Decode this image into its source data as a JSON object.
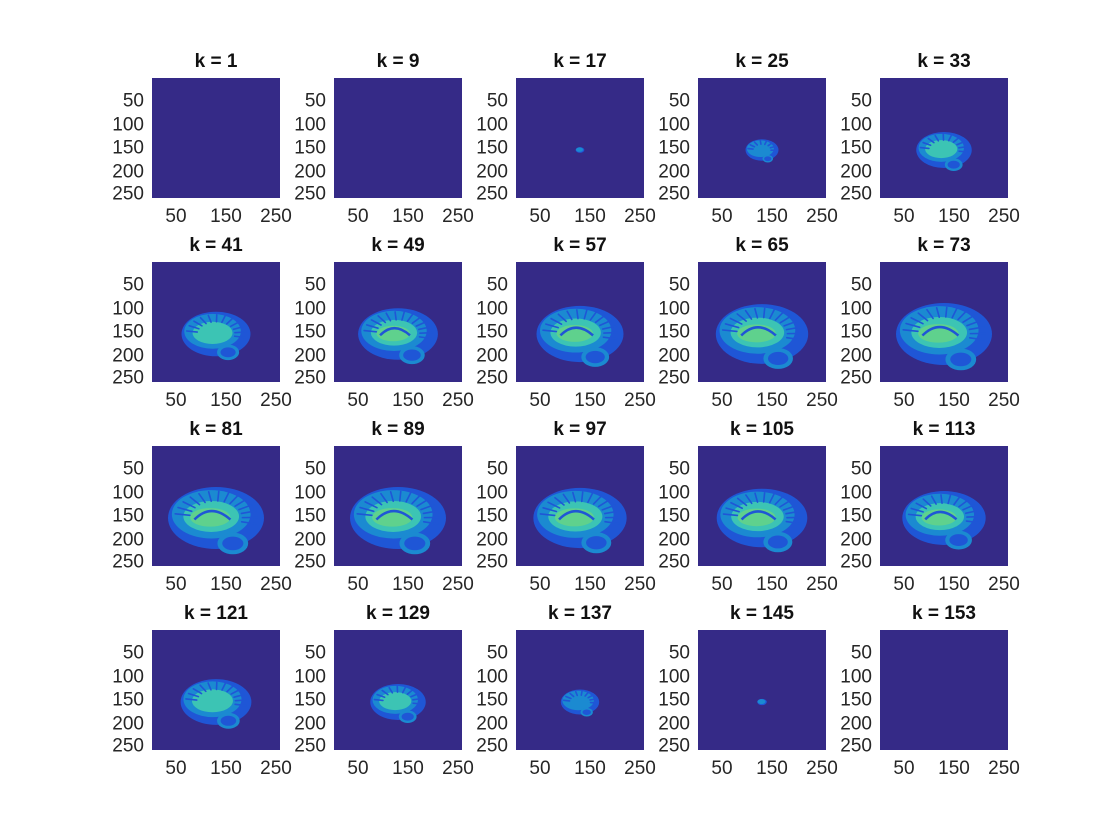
{
  "figure": {
    "colors": {
      "background": "#352a87",
      "tissue_dark": "#1f56d6",
      "tissue_mid": "#1b8ad1",
      "tissue_light": "#3cc4b4",
      "white_matter": "#5fd18d"
    },
    "y_ticks": [
      "50",
      "100",
      "150",
      "200",
      "250"
    ],
    "x_ticks": [
      "50",
      "150",
      "250"
    ],
    "panels": [
      {
        "title": "k = 1",
        "level": 0
      },
      {
        "title": "k = 9",
        "level": 0
      },
      {
        "title": "k = 17",
        "level": 0.03
      },
      {
        "title": "k = 25",
        "level": 0.3
      },
      {
        "title": "k = 33",
        "level": 0.55
      },
      {
        "title": "k = 41",
        "level": 0.7
      },
      {
        "title": "k = 49",
        "level": 0.82
      },
      {
        "title": "k = 57",
        "level": 0.9
      },
      {
        "title": "k = 65",
        "level": 0.96
      },
      {
        "title": "k = 73",
        "level": 1.0
      },
      {
        "title": "k = 81",
        "level": 1.0
      },
      {
        "title": "k = 89",
        "level": 1.0
      },
      {
        "title": "k = 97",
        "level": 0.97
      },
      {
        "title": "k = 105",
        "level": 0.94
      },
      {
        "title": "k = 113",
        "level": 0.86
      },
      {
        "title": "k = 121",
        "level": 0.72
      },
      {
        "title": "k = 129",
        "level": 0.55
      },
      {
        "title": "k = 137",
        "level": 0.36
      },
      {
        "title": "k = 145",
        "level": 0.04
      },
      {
        "title": "k = 153",
        "level": 0
      }
    ]
  }
}
